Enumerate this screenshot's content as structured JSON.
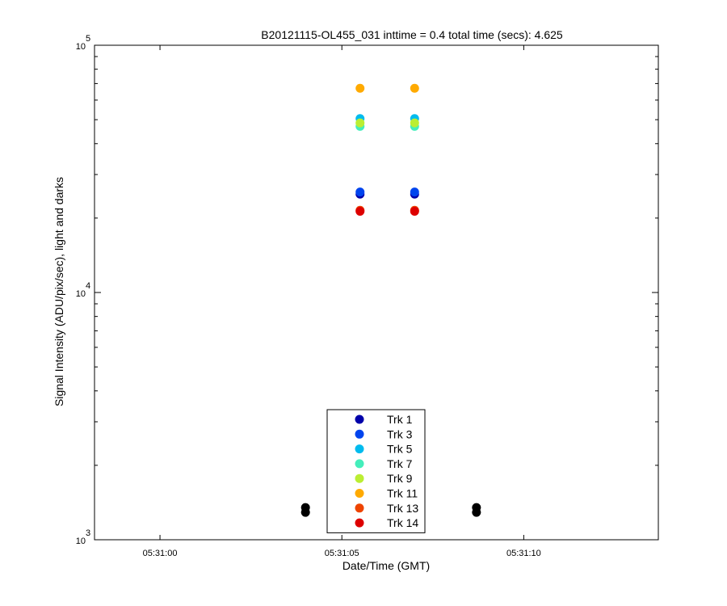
{
  "chart_data": {
    "type": "scatter",
    "title": "B20121115-OL455_031 inttime = 0.4 total time (secs): 4.625",
    "xlabel": "Date/Time (GMT)",
    "ylabel": "Signal Intensity (ADU/pix/sec), light and darks",
    "yscale": "log",
    "ylim": [
      1000,
      100000
    ],
    "xlim": [
      "05:30:58.2",
      "05:31:13.7"
    ],
    "x_ticks": [
      "05:31:00",
      "05:31:05",
      "05:31:10"
    ],
    "y_ticks": [
      {
        "base": "10",
        "exp": "3"
      },
      {
        "base": "10",
        "exp": "4"
      },
      {
        "base": "10",
        "exp": "5"
      }
    ],
    "grid": false,
    "legend_position": "bottom-center",
    "series": [
      {
        "name": "Trk 1",
        "color": "#0000aa",
        "x": [
          "05:31:05.5",
          "05:31:07.0"
        ],
        "y": [
          25000,
          25000
        ]
      },
      {
        "name": "Trk 3",
        "color": "#0044ee",
        "x": [
          "05:31:05.5",
          "05:31:07.0"
        ],
        "y": [
          25500,
          25500
        ]
      },
      {
        "name": "Trk 5",
        "color": "#00bbee",
        "x": [
          "05:31:05.5",
          "05:31:07.0"
        ],
        "y": [
          50500,
          50500
        ]
      },
      {
        "name": "Trk 7",
        "color": "#44eebb",
        "x": [
          "05:31:05.5",
          "05:31:07.0"
        ],
        "y": [
          47000,
          47000
        ]
      },
      {
        "name": "Trk 9",
        "color": "#bbee33",
        "x": [
          "05:31:05.5",
          "05:31:07.0"
        ],
        "y": [
          48500,
          48500
        ]
      },
      {
        "name": "Trk 11",
        "color": "#ffaa00",
        "x": [
          "05:31:05.5",
          "05:31:07.0"
        ],
        "y": [
          67000,
          67000
        ]
      },
      {
        "name": "Trk 13",
        "color": "#ee4400",
        "x": [
          "05:31:05.5",
          "05:31:07.0"
        ],
        "y": [
          21500,
          21500
        ]
      },
      {
        "name": "Trk 14",
        "color": "#dd0000",
        "x": [
          "05:31:05.5",
          "05:31:07.0"
        ],
        "y": [
          21300,
          21300
        ]
      }
    ],
    "dark_points": {
      "color": "#000000",
      "x": [
        "05:31:04.0",
        "05:31:08.7"
      ],
      "y": [
        1320,
        1320
      ]
    }
  }
}
